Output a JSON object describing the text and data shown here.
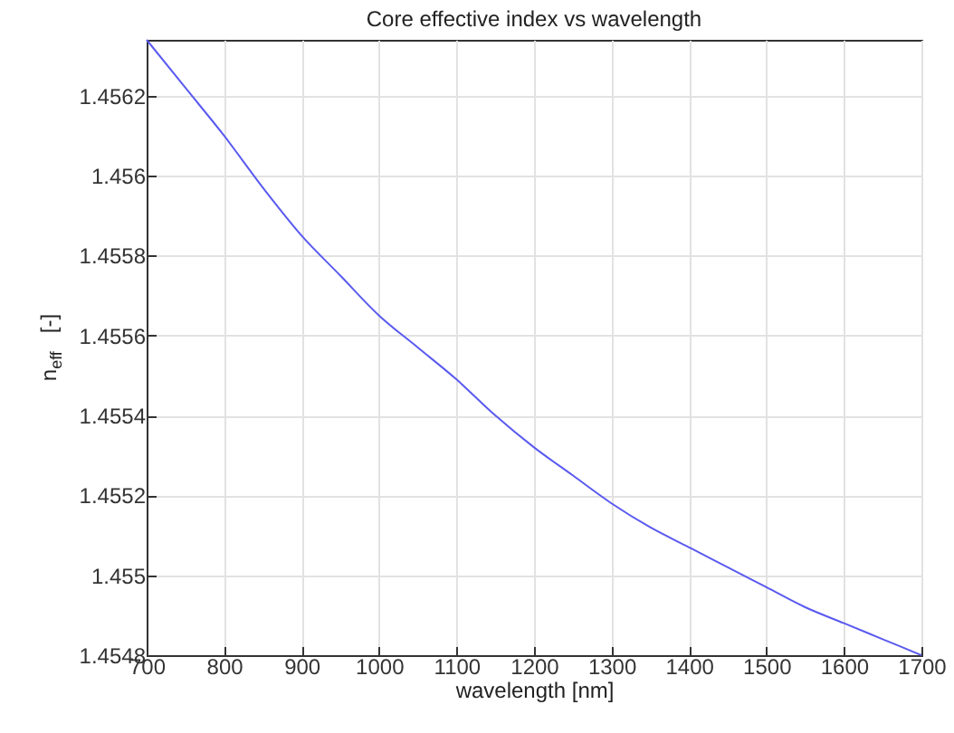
{
  "chart_data": {
    "type": "line",
    "title": "Core effective index vs wavelength",
    "xlabel": "wavelength [nm]",
    "ylabel": "n$_{eff}$   [-]",
    "x": [
      700,
      750,
      800,
      850,
      900,
      950,
      1000,
      1050,
      1100,
      1150,
      1200,
      1250,
      1300,
      1350,
      1400,
      1450,
      1500,
      1550,
      1600,
      1650,
      1700
    ],
    "series": [
      {
        "color": "#5a5af0",
        "values": [
          1.45634,
          1.45622,
          1.4561,
          1.45597,
          1.45585,
          1.45575,
          1.45565,
          1.45557,
          1.45549,
          1.4554,
          1.45532,
          1.45525,
          1.45518,
          1.45512,
          1.45507,
          1.45502,
          1.45497,
          1.45492,
          1.45488,
          1.45484,
          1.4548
        ]
      }
    ],
    "xlim": [
      700,
      1700
    ],
    "xticks": [
      700,
      800,
      900,
      1000,
      1100,
      1200,
      1300,
      1400,
      1500,
      1600,
      1700
    ],
    "ylim": [
      1.4548,
      1.45634
    ],
    "yticks": [
      1.4548,
      1.455,
      1.4552,
      1.4554,
      1.4556,
      1.4558,
      1.456,
      1.4562
    ],
    "grid": true,
    "line_style": "solid",
    "marker": "none"
  }
}
